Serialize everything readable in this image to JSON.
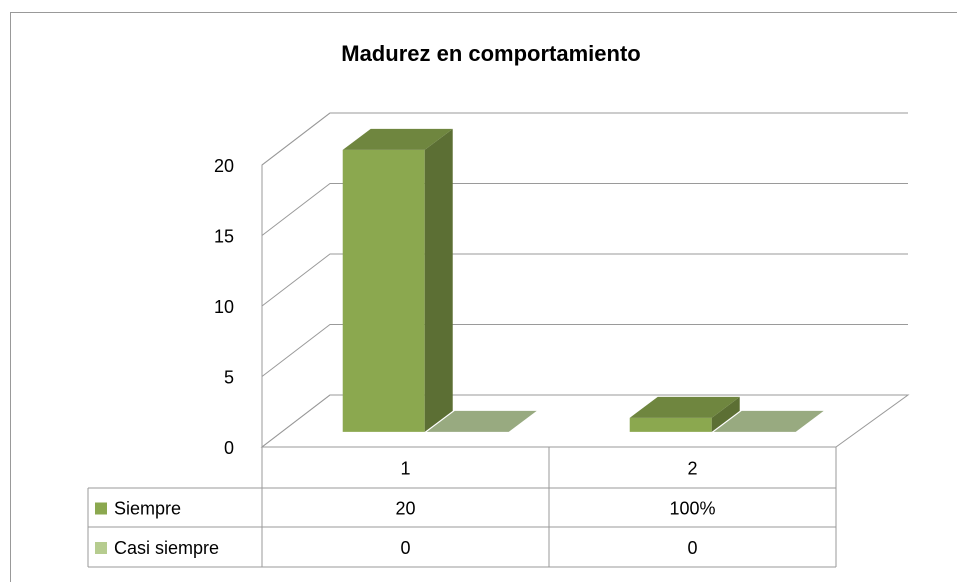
{
  "chart_data": {
    "type": "bar3d",
    "title": "Madurez en comportamiento",
    "categories": [
      "1",
      "2"
    ],
    "series": [
      {
        "name": "Siempre",
        "color": "#8ba84f",
        "values": [
          20,
          1
        ],
        "value_labels": [
          "20",
          "100%"
        ]
      },
      {
        "name": "Casi siempre",
        "color": "#b6cc8f",
        "values": [
          0,
          0
        ],
        "value_labels": [
          "0",
          "0"
        ]
      }
    ],
    "ylim": [
      0,
      20
    ],
    "yticks": [
      0,
      5,
      10,
      15,
      20
    ],
    "grid": true,
    "data_table": true
  }
}
